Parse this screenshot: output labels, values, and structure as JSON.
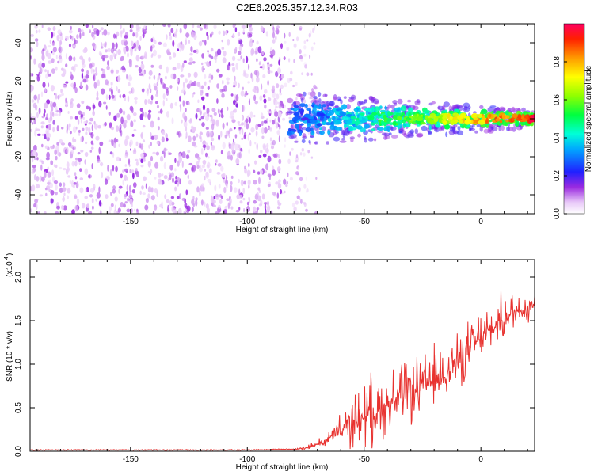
{
  "title": "C2E6.2025.357.12.34.R03",
  "colors": {
    "snr_line": "#e8322f",
    "axis": "#000000",
    "background": "#ffffff"
  },
  "chart_data": [
    {
      "type": "heatmap",
      "name": "spectrogram",
      "xlabel": "Height of straight line (km)",
      "ylabel": "Frequency (Hz)",
      "xlim": [
        -193,
        23
      ],
      "ylim": [
        -50,
        50
      ],
      "xticks": [
        -150,
        -100,
        -50,
        0
      ],
      "yticks": [
        40,
        20,
        0,
        -20,
        -40
      ],
      "xtick_labels": [
        "-150",
        "-100",
        "-50",
        "0"
      ],
      "ytick_labels": [
        "40",
        "20",
        "0",
        "-20",
        "-40"
      ],
      "colorbar": {
        "label": "Normalized spectral amplitude",
        "range": [
          0,
          1
        ],
        "ticks": [
          0.0,
          0.2,
          0.4,
          0.6,
          0.8
        ],
        "tick_labels": [
          "0.0",
          "0.2",
          "0.4",
          "0.6",
          "0.8"
        ]
      },
      "regions": [
        {
          "desc": "broadband noise",
          "x_range": [
            -193,
            -84
          ],
          "freq_range": [
            -50,
            50
          ],
          "amplitude": [
            0.05,
            0.15
          ]
        },
        {
          "desc": "sparse noise",
          "x_range": [
            -84,
            -70
          ],
          "freq_range": [
            -50,
            50
          ],
          "amplitude": [
            0.02,
            0.1
          ]
        },
        {
          "desc": "signal band",
          "x_range": [
            -82,
            23
          ],
          "center_freq": 0,
          "amplitude_start": 0.2,
          "amplitude_end": 0.95
        }
      ]
    },
    {
      "type": "line",
      "name": "snr",
      "xlabel": "Height of straight line (km)",
      "ylabel": "SNR (10 * v/v)",
      "y_multiplier_label": "(x10",
      "y_multiplier_exp": "4",
      "xlim": [
        -193,
        23
      ],
      "ylim": [
        0,
        2.2
      ],
      "xticks": [
        -150,
        -100,
        -50,
        0
      ],
      "yticks": [
        0.0,
        0.5,
        1.0,
        1.5,
        2.0
      ],
      "xtick_labels": [
        "-150",
        "-100",
        "-50",
        "0"
      ],
      "ytick_labels": [
        "0.0",
        "0.5",
        "1.0",
        "1.5",
        "2.0"
      ],
      "series": [
        {
          "name": "SNR",
          "x": [
            -193,
            -150,
            -100,
            -80,
            -75,
            -70,
            -65,
            -60,
            -55,
            -50,
            -45,
            -40,
            -35,
            -30,
            -25,
            -20,
            -15,
            -10,
            -5,
            0,
            5,
            10,
            15,
            20,
            23
          ],
          "y": [
            0.01,
            0.01,
            0.01,
            0.02,
            0.04,
            0.08,
            0.14,
            0.22,
            0.32,
            0.4,
            0.45,
            0.52,
            0.6,
            0.65,
            0.72,
            0.8,
            0.9,
            1.0,
            1.15,
            1.3,
            1.4,
            1.52,
            1.6,
            1.65,
            1.7
          ],
          "spread": [
            0,
            0,
            0,
            0.01,
            0.03,
            0.05,
            0.12,
            0.22,
            0.38,
            0.5,
            0.5,
            0.48,
            0.48,
            0.45,
            0.45,
            0.45,
            0.42,
            0.42,
            0.4,
            0.35,
            0.3,
            0.35,
            0.35,
            0.3,
            0.2
          ]
        }
      ]
    }
  ]
}
